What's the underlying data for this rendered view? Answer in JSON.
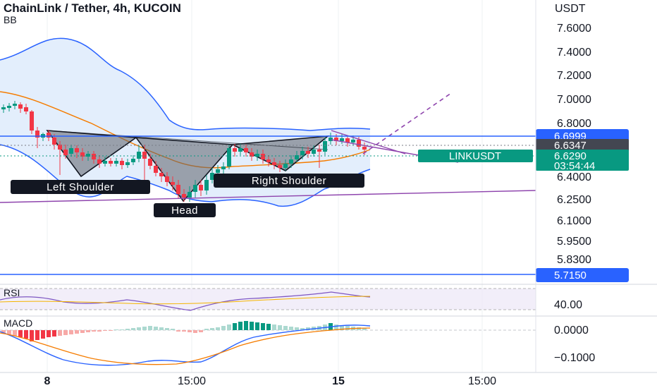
{
  "header": {
    "title": "ChainLink / Tether, 4h, KUCOIN",
    "indicator": "BB",
    "currency": "USDT"
  },
  "chart_data": {
    "type": "candlestick",
    "symbol": "LINKUSDT",
    "price_axis_labels": [
      "7.6000",
      "7.4000",
      "7.2000",
      "7.0000",
      "6.8000",
      "6.4000",
      "6.2500",
      "6.1000",
      "5.9500",
      "5.8300"
    ],
    "time_axis_labels": [
      "8",
      "15:00",
      "15",
      "15:00"
    ],
    "levels": {
      "resistance": "6.6999",
      "support": "5.7150",
      "bid_line": "6.6347",
      "last_price": "6.6290",
      "countdown": "03:54:44",
      "symbol_tag": "LINKUSDT"
    },
    "pattern": {
      "name": "Head and Shoulders",
      "labels": [
        "Left Shoulder",
        "Head",
        "Right Shoulder"
      ]
    },
    "rsi": {
      "label": "RSI",
      "axis_label": "40.00"
    },
    "macd": {
      "label": "MACD",
      "axis_labels": [
        "0.0000",
        "−0.1000"
      ]
    },
    "colors": {
      "up": "#089981",
      "down": "#f23645",
      "bb_band": "#2962ff",
      "bb_fill": "#e3eefc",
      "basis": "#f57c00",
      "level_line": "#2962ff",
      "pattern_fill": "#5d6068",
      "trendline": "#8e44ad"
    }
  }
}
